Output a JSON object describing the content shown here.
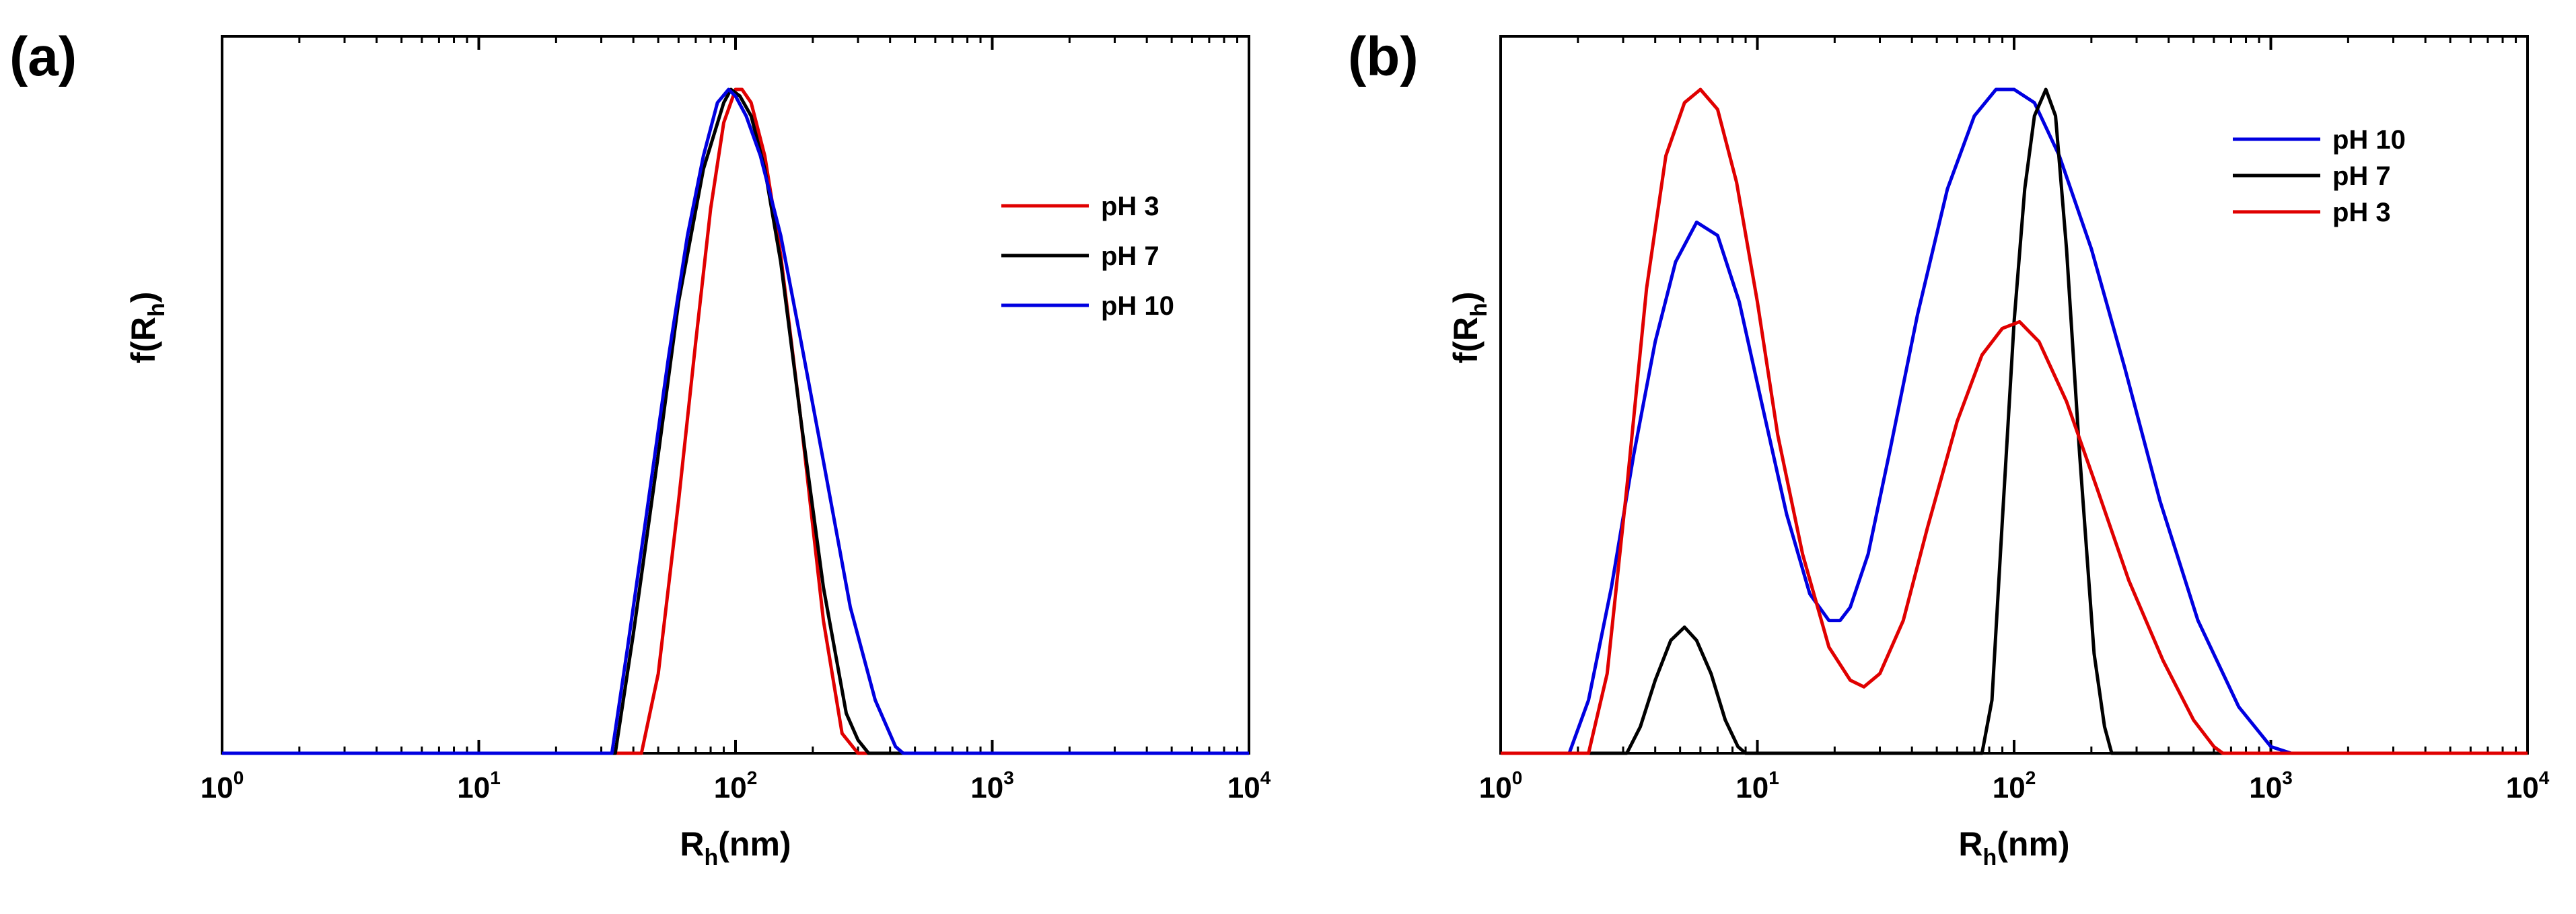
{
  "chart_data": [
    {
      "type": "line",
      "panel_label": "(a)",
      "xscale": "log",
      "xlim": [
        1,
        10000
      ],
      "ylim": [
        0,
        1.08
      ],
      "xticks": [
        {
          "base": "10",
          "exp": "0"
        },
        {
          "base": "10",
          "exp": "1"
        },
        {
          "base": "10",
          "exp": "2"
        },
        {
          "base": "10",
          "exp": "3"
        },
        {
          "base": "10",
          "exp": "4"
        }
      ],
      "xlabel": {
        "main": "R",
        "sub": "h",
        "rest": "(nm)"
      },
      "ylabel": {
        "main": "f(R",
        "sub": "h",
        "rest": ")"
      },
      "legend_position": "upper-right",
      "series": [
        {
          "name": "pH 3",
          "color": "#e00000",
          "x": [
            1,
            43,
            50,
            60,
            70,
            80,
            90,
            100,
            106,
            115,
            130,
            150,
            180,
            220,
            260,
            300,
            10000
          ],
          "y": [
            0,
            0,
            0.12,
            0.38,
            0.62,
            0.82,
            0.95,
            1.0,
            1.0,
            0.98,
            0.9,
            0.75,
            0.5,
            0.2,
            0.03,
            0,
            0
          ]
        },
        {
          "name": "pH 7",
          "color": "#000000",
          "x": [
            1,
            34,
            40,
            50,
            60,
            75,
            90,
            96,
            104,
            115,
            130,
            150,
            180,
            220,
            270,
            300,
            330,
            10000
          ],
          "y": [
            0,
            0,
            0.18,
            0.45,
            0.68,
            0.88,
            0.98,
            1.0,
            0.99,
            0.96,
            0.88,
            0.74,
            0.5,
            0.25,
            0.06,
            0.02,
            0,
            0
          ]
        },
        {
          "name": "pH 10",
          "color": "#0000e0",
          "x": [
            1,
            33,
            38,
            45,
            55,
            65,
            75,
            85,
            94,
            100,
            110,
            125,
            150,
            180,
            220,
            280,
            350,
            420,
            450,
            10000
          ],
          "y": [
            0,
            0,
            0.16,
            0.36,
            0.6,
            0.78,
            0.9,
            0.98,
            1.0,
            0.99,
            0.96,
            0.9,
            0.78,
            0.62,
            0.44,
            0.22,
            0.08,
            0.01,
            0,
            0
          ]
        }
      ]
    },
    {
      "type": "line",
      "panel_label": "(b)",
      "xscale": "log",
      "xlim": [
        1,
        10000
      ],
      "ylim": [
        0,
        1.08
      ],
      "xticks": [
        {
          "base": "10",
          "exp": "0"
        },
        {
          "base": "10",
          "exp": "1"
        },
        {
          "base": "10",
          "exp": "2"
        },
        {
          "base": "10",
          "exp": "3"
        },
        {
          "base": "10",
          "exp": "4"
        }
      ],
      "xlabel": {
        "main": "R",
        "sub": "h",
        "rest": "(nm)"
      },
      "ylabel": {
        "main": "f(R",
        "sub": "h",
        "rest": ")"
      },
      "legend_position": "upper-right",
      "series": [
        {
          "name": "pH 10",
          "color": "#0000e0",
          "x": [
            1,
            1.85,
            2.2,
            2.7,
            3.3,
            4.0,
            4.8,
            5.8,
            7.0,
            8.5,
            10.5,
            13,
            16,
            19,
            21,
            23,
            27,
            33,
            42,
            55,
            70,
            85,
            100,
            120,
            150,
            200,
            270,
            370,
            520,
            750,
            1000,
            1200,
            10000
          ],
          "y": [
            0,
            0,
            0.08,
            0.25,
            0.45,
            0.62,
            0.74,
            0.8,
            0.78,
            0.68,
            0.52,
            0.36,
            0.24,
            0.2,
            0.2,
            0.22,
            0.3,
            0.46,
            0.66,
            0.85,
            0.96,
            1.0,
            1.0,
            0.98,
            0.9,
            0.76,
            0.58,
            0.38,
            0.2,
            0.07,
            0.01,
            0,
            0
          ]
        },
        {
          "name": "pH 7",
          "color": "#000000",
          "x": [
            1,
            3.1,
            3.5,
            4.0,
            4.6,
            5.2,
            5.8,
            6.6,
            7.5,
            8.4,
            9.0,
            75,
            82,
            90,
            100,
            110,
            120,
            133,
            145,
            160,
            180,
            205,
            225,
            240,
            10000
          ],
          "y": [
            0,
            0,
            0.04,
            0.11,
            0.17,
            0.19,
            0.17,
            0.12,
            0.05,
            0.01,
            0,
            0,
            0.08,
            0.35,
            0.65,
            0.85,
            0.96,
            1.0,
            0.96,
            0.76,
            0.45,
            0.15,
            0.04,
            0,
            0
          ]
        },
        {
          "name": "pH 3",
          "color": "#e00000",
          "x": [
            1,
            2.2,
            2.6,
            3.1,
            3.7,
            4.4,
            5.2,
            6.0,
            7.0,
            8.3,
            10,
            12,
            15,
            19,
            23,
            26,
            30,
            37,
            46,
            60,
            75,
            90,
            105,
            125,
            160,
            210,
            280,
            380,
            500,
            600,
            650,
            10000
          ],
          "y": [
            0,
            0,
            0.12,
            0.4,
            0.7,
            0.9,
            0.98,
            1.0,
            0.97,
            0.86,
            0.68,
            0.48,
            0.3,
            0.16,
            0.11,
            0.1,
            0.12,
            0.2,
            0.34,
            0.5,
            0.6,
            0.64,
            0.65,
            0.62,
            0.53,
            0.4,
            0.26,
            0.14,
            0.05,
            0.01,
            0,
            0
          ]
        }
      ]
    }
  ]
}
